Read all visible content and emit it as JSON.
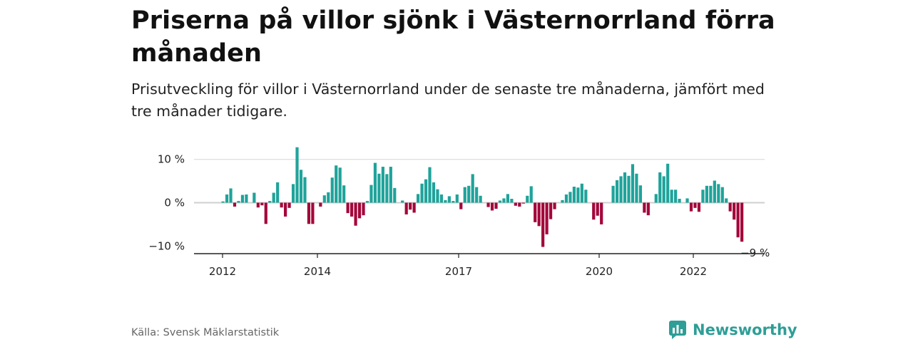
{
  "header": {
    "title": "Priserna på villor sjönk i Västernorrland förra månaden",
    "subtitle": "Prisutveckling för villor i Västernorrland under de senaste tre månaderna, jämfört med tre månader tidigare."
  },
  "footer": {
    "source": "Källa: Svensk Mäklarstatistik",
    "brand": "Newsworthy"
  },
  "colors": {
    "positive": "#1fa39a",
    "negative": "#a3063a",
    "grid": "#d6d6d6",
    "axis": "#222222",
    "brand": "#2e9e97"
  },
  "chart_data": {
    "type": "bar",
    "title": "",
    "xlabel": "",
    "ylabel": "",
    "ylim": [
      -12,
      14
    ],
    "y_ticks": [
      {
        "value": 10,
        "label": "10 %"
      },
      {
        "value": 0,
        "label": "0 %"
      },
      {
        "value": -10,
        "label": "−10 %"
      }
    ],
    "x_ticks": [
      "2012",
      "2014",
      "2017",
      "2020",
      "2022"
    ],
    "annotation": "−9 %",
    "grid": true,
    "values": [
      0.3,
      1.9,
      3.3,
      -0.9,
      0.4,
      1.8,
      1.9,
      0.0,
      2.3,
      -1.1,
      -0.6,
      -4.9,
      0.4,
      2.3,
      4.7,
      -1.1,
      -3.2,
      -1.2,
      4.3,
      12.8,
      7.6,
      5.9,
      -4.9,
      -4.9,
      0.0,
      -0.9,
      1.7,
      2.4,
      5.8,
      8.6,
      8.1,
      4.0,
      -2.4,
      -3.2,
      -5.3,
      -3.6,
      -2.9,
      0.4,
      4.1,
      9.2,
      6.7,
      8.3,
      6.6,
      8.3,
      3.4,
      0.0,
      0.5,
      -2.7,
      -1.6,
      -2.3,
      2.0,
      4.4,
      5.4,
      8.2,
      4.7,
      3.1,
      1.9,
      0.6,
      1.5,
      0.4,
      1.9,
      -1.5,
      3.6,
      3.9,
      6.6,
      3.6,
      1.6,
      0.0,
      -1.0,
      -1.8,
      -1.4,
      0.5,
      1.0,
      2.0,
      0.9,
      -0.7,
      -0.9,
      -0.2,
      1.6,
      3.8,
      -4.5,
      -5.4,
      -10.2,
      -7.3,
      -3.8,
      -1.5,
      0.0,
      0.6,
      1.9,
      2.5,
      3.7,
      3.5,
      4.4,
      3.0,
      0.0,
      -3.9,
      -3.0,
      -5.0,
      0.0,
      0.0,
      3.9,
      5.2,
      6.1,
      7.0,
      6.2,
      8.9,
      6.7,
      4.0,
      -2.3,
      -2.9,
      0.0,
      2.0,
      7.0,
      6.1,
      9.0,
      3.0,
      3.0,
      0.9,
      0.0,
      1.0,
      -2.0,
      -1.2,
      -2.1,
      3.0,
      3.9,
      3.9,
      5.1,
      4.3,
      3.6,
      1.0,
      -2.0,
      -3.9,
      -8.0,
      -9.0
    ]
  }
}
